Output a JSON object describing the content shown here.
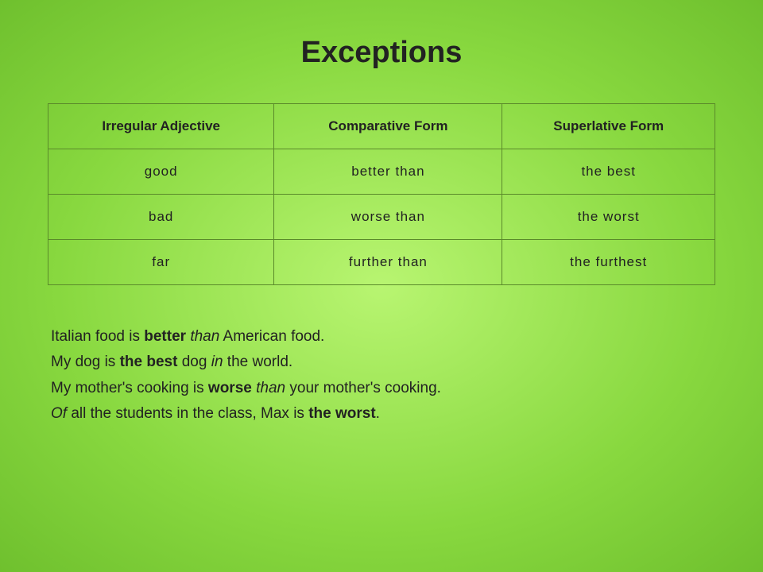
{
  "title": "Exceptions",
  "table": {
    "headers": [
      "Irregular Adjective",
      "Comparative Form",
      "Superlative Form"
    ],
    "rows": [
      [
        "good",
        "better than",
        "the best"
      ],
      [
        "bad",
        "worse than",
        "the worst"
      ],
      [
        "far",
        "further than",
        "the furthest"
      ]
    ],
    "border_color": "#5a8a2a",
    "header_fontsize": 17,
    "cell_fontsize": 17
  },
  "examples": {
    "s1": {
      "t1": "Italian food is ",
      "b1": "better",
      "t2": " than",
      "t3": " American food."
    },
    "s2": {
      "t1": "My dog is ",
      "b1": "the best",
      "t2": " dog ",
      "i1": "in",
      "t3": " the world."
    },
    "s3": {
      "t1": "My mother's cooking is ",
      "b1": "worse",
      "t2": " than",
      "t3": " your mother's cooking."
    },
    "s4": {
      "t1": "Of",
      "t2": " all the students in the class, Max is ",
      "b1": "the worst",
      "t3": "."
    }
  },
  "style": {
    "bg_center": "#b8f571",
    "bg_mid": "#88d83f",
    "bg_edge": "#6fc02e",
    "title_fontsize": 38,
    "body_fontsize": 19,
    "text_color": "#222222"
  }
}
